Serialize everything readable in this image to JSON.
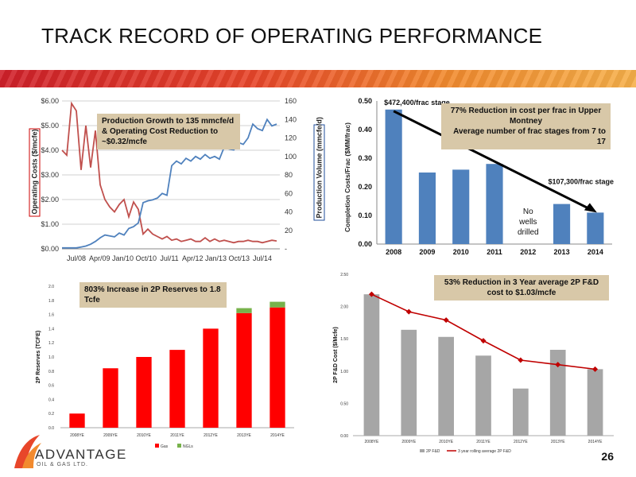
{
  "slide": {
    "title": "TRACK RECORD OF OPERATING PERFORMANCE",
    "page_number": "26",
    "logo": {
      "name": "ADVANTAGE",
      "subtitle": "OIL & GAS LTD."
    }
  },
  "colors": {
    "band_start": "#d0202a",
    "band_end": "#f6b04a",
    "bar_blue": "#4f81bd",
    "red": "#c0504d",
    "green": "#77b24b",
    "gray": "#a6a6a6",
    "annotation": "#d8c8a8"
  },
  "chart_data": [
    {
      "id": "production-opcost",
      "type": "line",
      "annotation": "Production Growth to 135 mmcfe/d & Operating Cost Reduction to ~$0.32/mcfe",
      "ylabel_left": "Operating Costs ($/mcfe)",
      "ylabel_right": "Production Volume (mmcfe/d)",
      "y_left_ticks": [
        "$0.00",
        "$1.00",
        "$2.00",
        "$3.00",
        "$4.00",
        "$5.00",
        "$6.00"
      ],
      "ylim_left": [
        0,
        6
      ],
      "y_right_ticks": [
        "-",
        "20",
        "40",
        "60",
        "80",
        "100",
        "120",
        "140",
        "160"
      ],
      "ylim_right": [
        0,
        160
      ],
      "x_ticks": [
        "Jul/08",
        "Apr/09",
        "Jan/10",
        "Oct/10",
        "Jul/11",
        "Apr/12",
        "Jan/13",
        "Oct/13",
        "Jul/14"
      ],
      "series": [
        {
          "name": "Operating Costs",
          "axis": "left",
          "color": "#c0504d",
          "values": [
            4.0,
            3.8,
            5.9,
            5.6,
            3.2,
            5.0,
            3.3,
            4.8,
            2.6,
            2.0,
            1.7,
            1.5,
            1.8,
            2.0,
            1.3,
            1.9,
            1.6,
            0.6,
            0.8,
            0.6,
            0.5,
            0.4,
            0.5,
            0.35,
            0.4,
            0.3,
            0.35,
            0.4,
            0.3,
            0.3,
            0.45,
            0.3,
            0.4,
            0.3,
            0.35,
            0.3,
            0.25,
            0.3,
            0.3,
            0.35,
            0.3,
            0.3,
            0.25,
            0.3,
            0.35,
            0.32
          ]
        },
        {
          "name": "Production Volume",
          "axis": "right",
          "color": "#4f81bd",
          "values": [
            1,
            1,
            1,
            1,
            2,
            3,
            5,
            8,
            12,
            15,
            14,
            13,
            17,
            15,
            22,
            24,
            28,
            50,
            52,
            53,
            55,
            60,
            58,
            90,
            95,
            92,
            98,
            95,
            100,
            97,
            102,
            98,
            100,
            97,
            110,
            108,
            107,
            115,
            113,
            120,
            135,
            130,
            128,
            140,
            133,
            135
          ]
        }
      ]
    },
    {
      "id": "frac-cost",
      "type": "bar",
      "annotation_line1": "77% Reduction in cost per frac in Upper Montney",
      "annotation_line2": "Average number of frac stages from 7 to 17",
      "ylabel": "Completion Costs/Frac ($MM/frac)",
      "ylim": [
        0,
        0.5
      ],
      "y_ticks": [
        "0.00",
        "0.10",
        "0.20",
        "0.30",
        "0.40",
        "0.50"
      ],
      "categories": [
        "2008",
        "2009",
        "2010",
        "2011",
        "2012",
        "2013",
        "2014"
      ],
      "values": [
        0.47,
        0.25,
        0.26,
        0.28,
        null,
        0.14,
        0.11
      ],
      "labels": {
        "start": "$472,400/frac stage",
        "end": "$107,300/frac stage",
        "gap": [
          "No",
          "wells",
          "drilled"
        ]
      }
    },
    {
      "id": "reserves",
      "type": "bar",
      "annotation": "803% Increase in 2P Reserves to 1.8 Tcfe",
      "ylabel": "2P Reserves (TCFE)",
      "ylim": [
        0,
        2.0
      ],
      "y_ticks": [
        "0.0",
        "0.2",
        "0.4",
        "0.6",
        "0.8",
        "1.0",
        "1.2",
        "1.4",
        "1.6",
        "1.8",
        "2.0"
      ],
      "categories": [
        "2008YE",
        "2009YE",
        "2010YE",
        "2011YE",
        "2012YE",
        "2013YE",
        "2014YE"
      ],
      "series": [
        {
          "name": "Gas",
          "color": "#ff0000",
          "values": [
            0.2,
            0.84,
            1.0,
            1.1,
            1.4,
            1.62,
            1.7
          ]
        },
        {
          "name": "NGLs",
          "color": "#77b24b",
          "values": [
            0,
            0,
            0,
            0,
            0,
            0.07,
            0.08
          ]
        }
      ]
    },
    {
      "id": "fd-cost",
      "type": "bar",
      "annotation": "53% Reduction in 3 Year average 2P F&D cost to $1.03/mcfe",
      "ylabel": "2P F&D Cost ($/Mcfe)",
      "ylim": [
        0,
        2.5
      ],
      "y_ticks": [
        "0.00",
        "0.50",
        "1.00",
        "1.50",
        "2.00",
        "2.50"
      ],
      "categories": [
        "2008YE",
        "2009YE",
        "2010YE",
        "2011YE",
        "2012YE",
        "2013YE",
        "2014YE"
      ],
      "series": [
        {
          "name": "2P F&D",
          "color": "#a6a6a6",
          "values": [
            2.19,
            1.64,
            1.53,
            1.24,
            0.73,
            1.33,
            1.03
          ]
        },
        {
          "name": "3 year rolling average 2P F&D",
          "color": "#c00000",
          "values": [
            2.19,
            1.92,
            1.79,
            1.47,
            1.17,
            1.1,
            1.03
          ]
        }
      ]
    }
  ]
}
